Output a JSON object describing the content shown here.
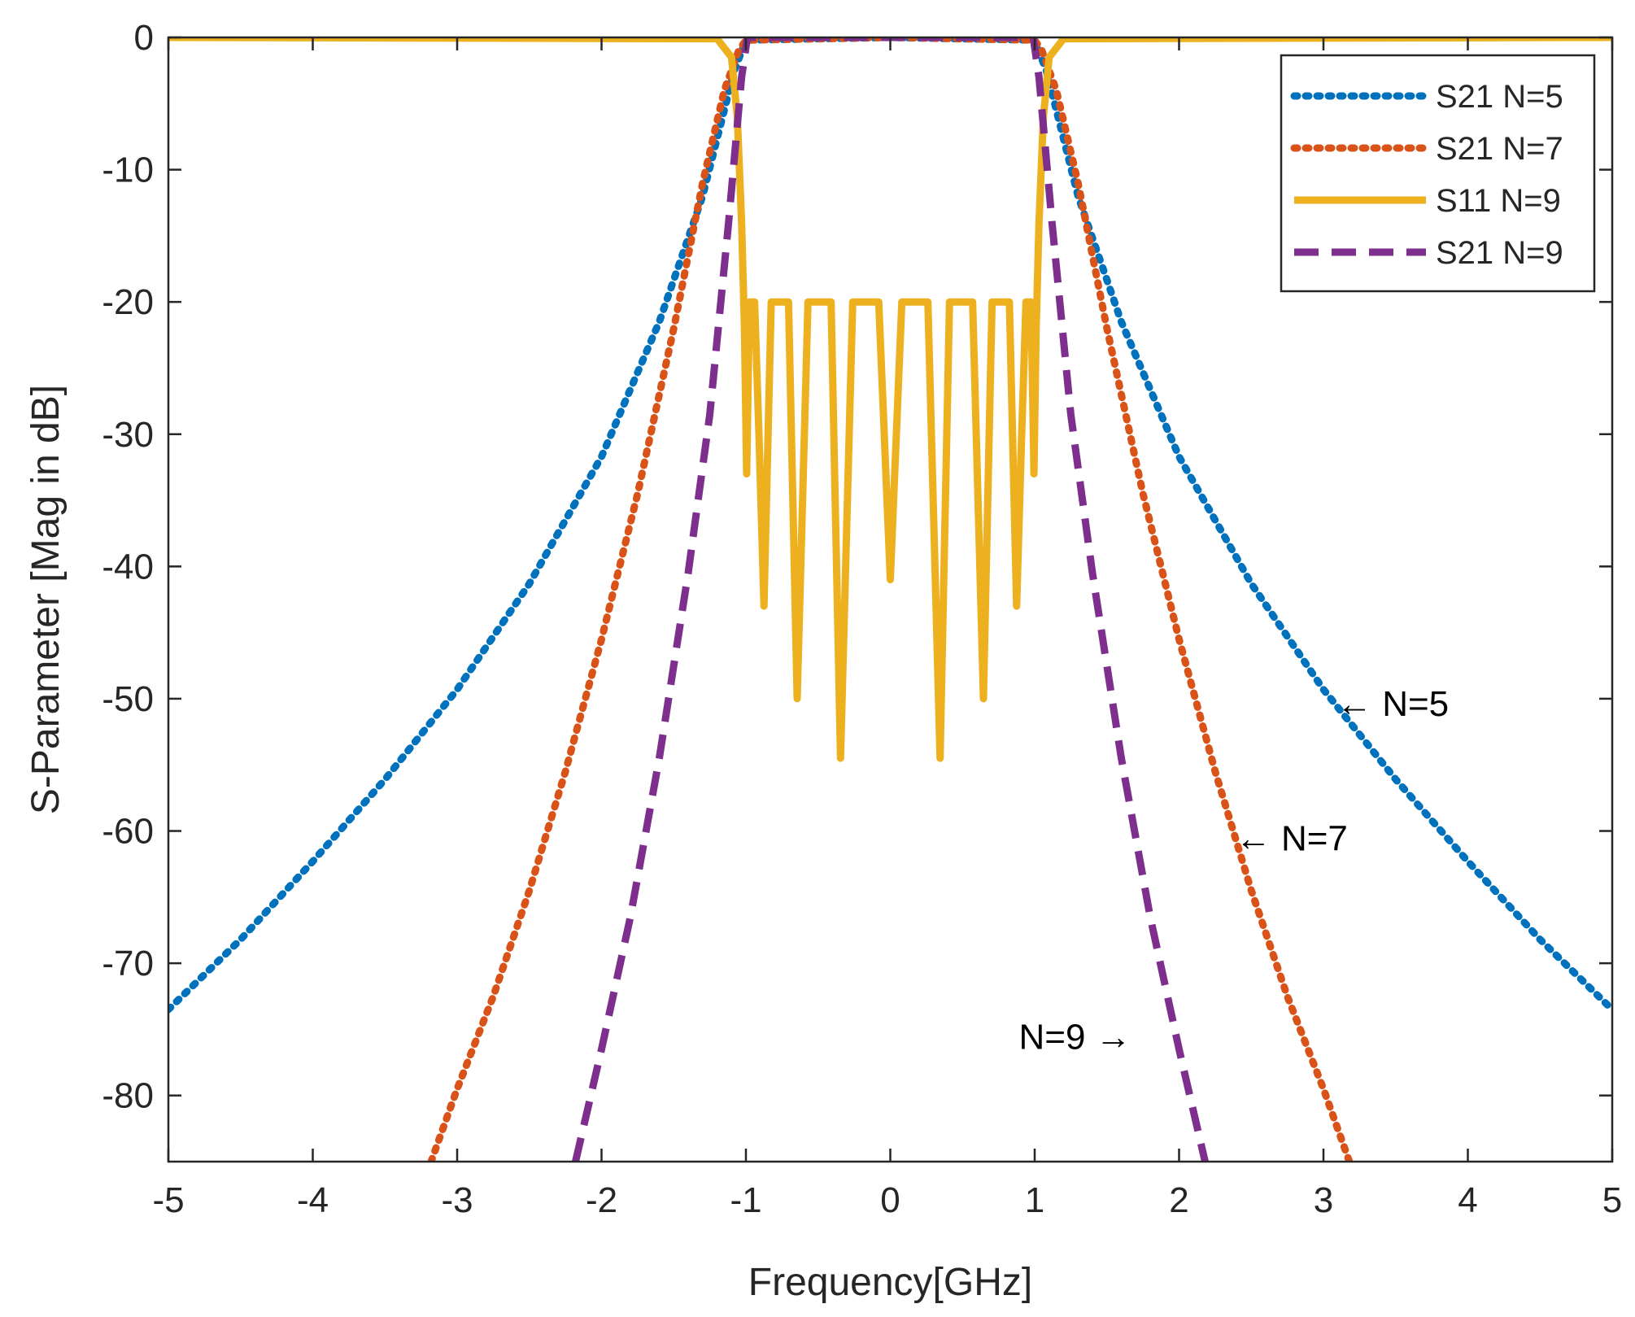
{
  "chart_data": {
    "type": "line",
    "title": "",
    "xlabel": "Frequency[GHz]",
    "ylabel": "S-Parameter [Mag in dB]",
    "xlim": [
      -5,
      5
    ],
    "ylim": [
      -85,
      0
    ],
    "xticks": [
      -5,
      -4,
      -3,
      -2,
      -1,
      0,
      1,
      2,
      3,
      4,
      5
    ],
    "yticks": [
      0,
      -10,
      -20,
      -30,
      -40,
      -50,
      -60,
      -70,
      -80
    ],
    "grid": false,
    "legend_position": "top-right",
    "series": [
      {
        "name": "S21 N=5",
        "color": "#0072BD",
        "style": "dotted",
        "x": [
          -5,
          -4.5,
          -4,
          -3.5,
          -3,
          -2.5,
          -2,
          -1.6,
          -1.3,
          -1.15,
          -1.08,
          -1.0,
          0,
          1.0,
          1.08,
          1.15,
          1.3,
          1.6,
          2,
          2.5,
          3,
          3.5,
          4,
          4.5,
          5
        ],
        "y": [
          -73.5,
          -68.2,
          -62.3,
          -56.1,
          -49.3,
          -41.3,
          -31.7,
          -21.5,
          -12.0,
          -5.5,
          -2.5,
          -0.2,
          0,
          -0.2,
          -2.5,
          -5.5,
          -12.0,
          -21.5,
          -31.7,
          -41.3,
          -49.3,
          -56.1,
          -62.3,
          -68.2,
          -73.5
        ]
      },
      {
        "name": "S21 N=7",
        "color": "#D95319",
        "style": "dotted",
        "x": [
          -3.18,
          -3.0,
          -2.75,
          -2.5,
          -2.25,
          -2.0,
          -1.75,
          -1.5,
          -1.3,
          -1.15,
          -1.05,
          -1.0,
          0,
          1.0,
          1.05,
          1.15,
          1.3,
          1.5,
          1.75,
          2.0,
          2.25,
          2.5,
          2.75,
          3.0,
          3.18
        ],
        "y": [
          -85,
          -79.5,
          -72.5,
          -64.5,
          -55.5,
          -45.5,
          -34.5,
          -22.0,
          -11.0,
          -4.0,
          -1.0,
          -0.2,
          0,
          -0.2,
          -1.0,
          -4.0,
          -11.0,
          -22.0,
          -34.5,
          -45.5,
          -55.5,
          -64.5,
          -72.5,
          -79.5,
          -85
        ]
      },
      {
        "name": "S11 N=9",
        "color": "#EDB120",
        "style": "solid",
        "x": [
          -5,
          -1.2,
          -1.1,
          -1.06,
          -1.03,
          -1.01,
          -0.995,
          -0.975,
          -0.94,
          -0.91,
          -0.875,
          -0.825,
          -0.765,
          -0.705,
          -0.645,
          -0.57,
          -0.48,
          -0.41,
          -0.345,
          -0.26,
          -0.17,
          -0.08,
          0.0,
          0.08,
          0.17,
          0.26,
          0.345,
          0.41,
          0.48,
          0.57,
          0.645,
          0.705,
          0.765,
          0.825,
          0.875,
          0.91,
          0.94,
          0.975,
          0.995,
          1.01,
          1.03,
          1.06,
          1.1,
          1.2,
          5
        ],
        "y": [
          0,
          -0.1,
          -1.5,
          -6,
          -14,
          -22,
          -33,
          -20,
          -20,
          -30,
          -43,
          -20,
          -20,
          -20,
          -50,
          -20,
          -20,
          -20,
          -54.5,
          -20,
          -20,
          -20,
          -41,
          -20,
          -20,
          -20,
          -54.5,
          -20,
          -20,
          -20,
          -50,
          -20,
          -20,
          -20,
          -43,
          -30,
          -20,
          -20,
          -33,
          -22,
          -14,
          -6,
          -1.5,
          -0.1,
          0
        ]
      },
      {
        "name": "S21 N=9",
        "color": "#7E2F8E",
        "style": "dashed",
        "x": [
          -2.18,
          -2.0,
          -1.8,
          -1.6,
          -1.4,
          -1.25,
          -1.12,
          -1.03,
          -0.99,
          0,
          0.99,
          1.03,
          1.12,
          1.25,
          1.4,
          1.6,
          1.8,
          2.0,
          2.18
        ],
        "y": [
          -85,
          -76.5,
          -66.5,
          -54.5,
          -40.5,
          -28.5,
          -14.0,
          -3.0,
          0,
          0,
          0,
          -3.0,
          -14.0,
          -28.5,
          -40.5,
          -54.5,
          -66.5,
          -76.5,
          -85
        ]
      }
    ],
    "annotations": [
      {
        "text": "← N=5",
        "x": 3.09,
        "y": -50.3
      },
      {
        "text": "← N=7",
        "x": 2.39,
        "y": -60.5
      },
      {
        "text": "N=9 →",
        "x": 0.89,
        "y": -75.5
      }
    ]
  }
}
